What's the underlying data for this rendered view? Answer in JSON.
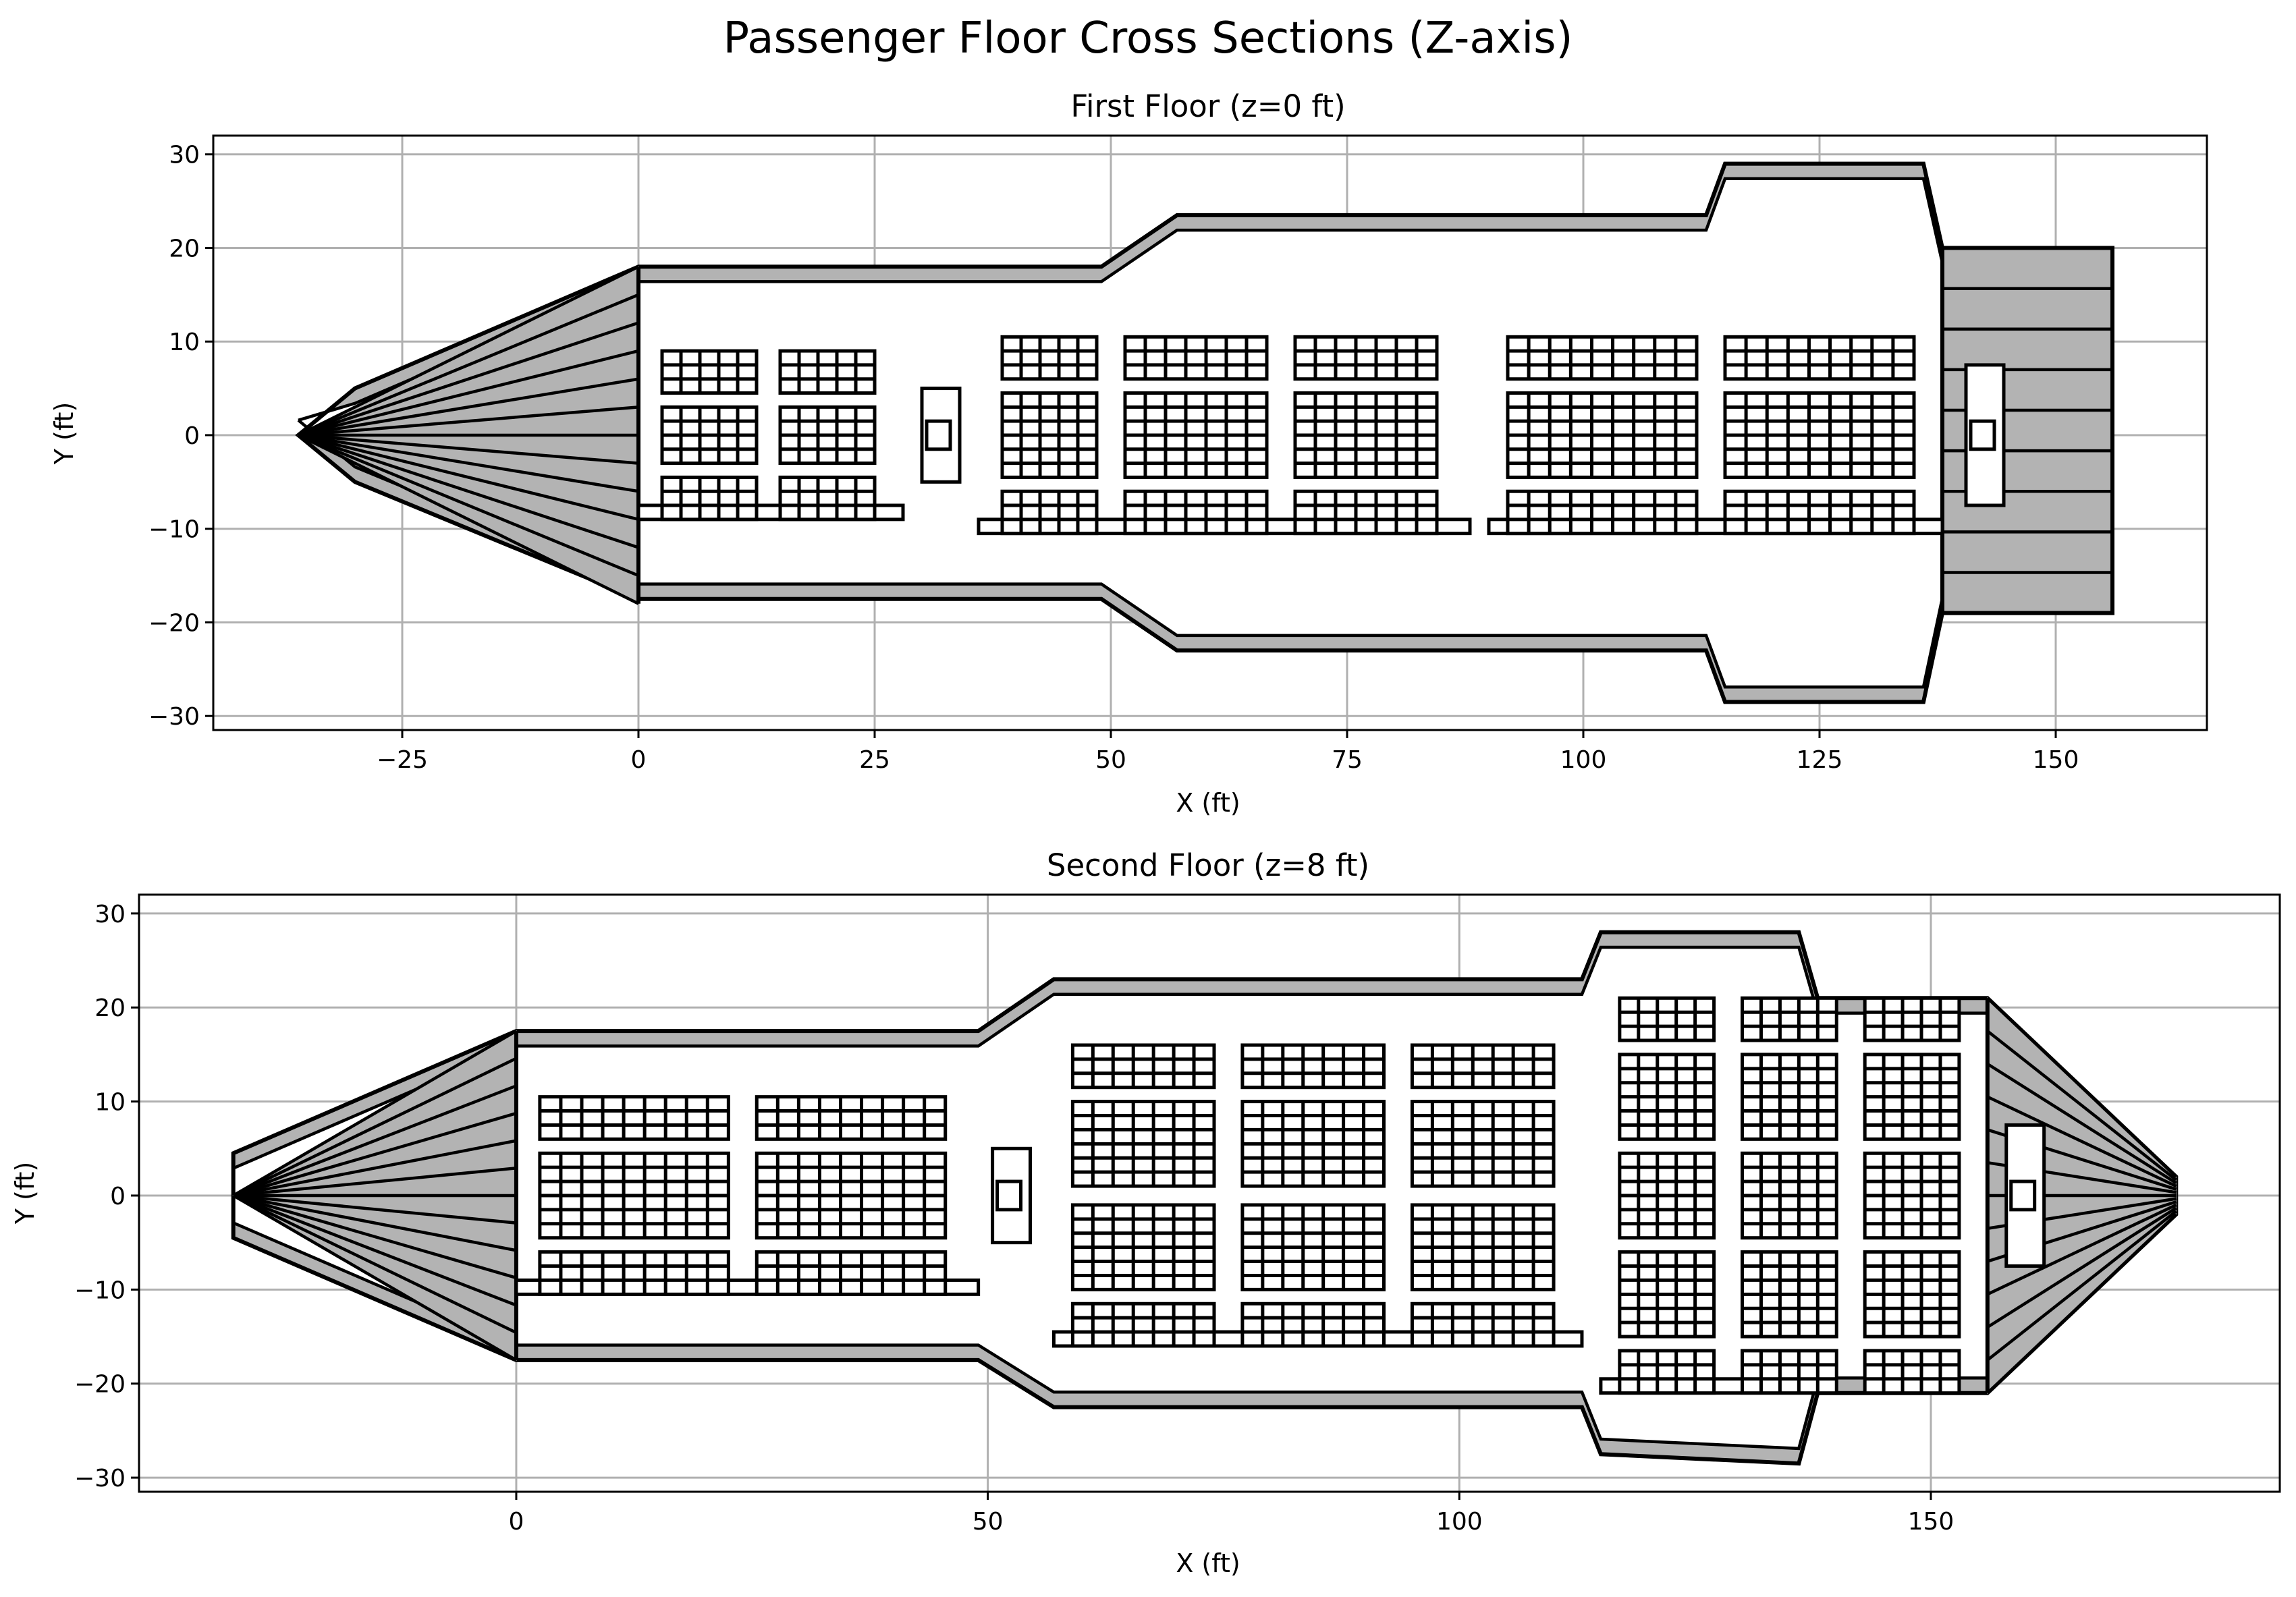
{
  "title": "Passenger Floor Cross Sections (Z-axis)",
  "colors": {
    "hull_fill": "#b3b3b3",
    "lines": "#000000",
    "grid": "#b0b0b0",
    "background": "#ffffff"
  },
  "chart_data": [
    {
      "type": "line",
      "title": "First Floor (z=0 ft)",
      "xlabel": "X (ft)",
      "ylabel": "Y (ft)",
      "xlim": [
        -45,
        166
      ],
      "ylim": [
        -31.5,
        32
      ],
      "xticks": [
        -25,
        0,
        25,
        50,
        75,
        100,
        125,
        150
      ],
      "yticks": [
        -30,
        -20,
        -10,
        0,
        10,
        20,
        30
      ],
      "xtick_labels": [
        "−25",
        "0",
        "25",
        "50",
        "75",
        "100",
        "125",
        "150"
      ],
      "ytick_labels": [
        "−30",
        "−20",
        "−10",
        "0",
        "10",
        "20",
        "30"
      ],
      "grid": true,
      "outline": [
        [
          -36,
          0
        ],
        [
          -30,
          5
        ],
        [
          0,
          18
        ],
        [
          49,
          18
        ],
        [
          57,
          23.5
        ],
        [
          113,
          23.5
        ],
        [
          115,
          29
        ],
        [
          136,
          29
        ],
        [
          138,
          20
        ],
        [
          156,
          20
        ],
        [
          156,
          -19
        ],
        [
          138,
          -19
        ],
        [
          136,
          -28.5
        ],
        [
          115,
          -28.5
        ],
        [
          113,
          -23
        ],
        [
          57,
          -23
        ],
        [
          49,
          -17.5
        ],
        [
          0,
          -17.5
        ],
        [
          -30,
          -5
        ]
      ],
      "nose": {
        "apex": [
          -36,
          0
        ],
        "base_x": 0,
        "half_width": 18,
        "spokes": 12
      },
      "tail_block": {
        "x": [
          138,
          156
        ],
        "y": [
          -19,
          20
        ],
        "bands": 9
      },
      "seat_blocks": [
        {
          "x": [
            2.5,
            12.5
          ],
          "y": [
            4.5,
            9
          ],
          "cols": 5,
          "rows": 3
        },
        {
          "x": [
            15,
            25
          ],
          "y": [
            4.5,
            9
          ],
          "cols": 5,
          "rows": 3
        },
        {
          "x": [
            2.5,
            12.5
          ],
          "y": [
            -3,
            3
          ],
          "cols": 5,
          "rows": 4
        },
        {
          "x": [
            15,
            25
          ],
          "y": [
            -3,
            3
          ],
          "cols": 5,
          "rows": 4
        },
        {
          "x": [
            2.5,
            12.5
          ],
          "y": [
            -9,
            -4.5
          ],
          "cols": 5,
          "rows": 3
        },
        {
          "x": [
            15,
            25
          ],
          "y": [
            -9,
            -4.5
          ],
          "cols": 5,
          "rows": 3
        },
        {
          "x": [
            38.5,
            48.5
          ],
          "y": [
            6,
            10.5
          ],
          "cols": 5,
          "rows": 3
        },
        {
          "x": [
            51.5,
            66.5
          ],
          "y": [
            6,
            10.5
          ],
          "cols": 7,
          "rows": 3
        },
        {
          "x": [
            69.5,
            84.5
          ],
          "y": [
            6,
            10.5
          ],
          "cols": 7,
          "rows": 3
        },
        {
          "x": [
            92,
            112
          ],
          "y": [
            6,
            10.5
          ],
          "cols": 9,
          "rows": 3
        },
        {
          "x": [
            115,
            135
          ],
          "y": [
            6,
            10.5
          ],
          "cols": 9,
          "rows": 3
        },
        {
          "x": [
            38.5,
            48.5
          ],
          "y": [
            -4.5,
            4.5
          ],
          "cols": 5,
          "rows": 6
        },
        {
          "x": [
            51.5,
            66.5
          ],
          "y": [
            -4.5,
            4.5
          ],
          "cols": 7,
          "rows": 6
        },
        {
          "x": [
            69.5,
            84.5
          ],
          "y": [
            -4.5,
            4.5
          ],
          "cols": 7,
          "rows": 6
        },
        {
          "x": [
            92,
            112
          ],
          "y": [
            -4.5,
            4.5
          ],
          "cols": 9,
          "rows": 6
        },
        {
          "x": [
            115,
            135
          ],
          "y": [
            -4.5,
            4.5
          ],
          "cols": 9,
          "rows": 6
        },
        {
          "x": [
            38.5,
            48.5
          ],
          "y": [
            -10.5,
            -6
          ],
          "cols": 5,
          "rows": 3
        },
        {
          "x": [
            51.5,
            66.5
          ],
          "y": [
            -10.5,
            -6
          ],
          "cols": 7,
          "rows": 3
        },
        {
          "x": [
            69.5,
            84.5
          ],
          "y": [
            -10.5,
            -6
          ],
          "cols": 7,
          "rows": 3
        },
        {
          "x": [
            92,
            112
          ],
          "y": [
            -10.5,
            -6
          ],
          "cols": 9,
          "rows": 3
        },
        {
          "x": [
            115,
            135
          ],
          "y": [
            -10.5,
            -6
          ],
          "cols": 9,
          "rows": 3
        }
      ],
      "aisle_rail": [
        [
          0,
          28,
          -9,
          -7.5
        ],
        [
          36,
          88,
          -10.5,
          -9
        ],
        [
          90,
          138,
          -10.5,
          -9
        ]
      ],
      "stair": {
        "x": [
          30,
          34
        ],
        "y": [
          -5,
          5
        ],
        "inner": [
          30.5,
          33,
          -1.5,
          1.5
        ]
      },
      "tail_door": {
        "x": [
          140.5,
          144.5
        ],
        "y": [
          -7.5,
          7.5
        ],
        "inner": [
          141,
          143.5,
          -1.5,
          1.5
        ]
      }
    },
    {
      "type": "line",
      "title": "Second Floor (z=8 ft)",
      "xlabel": "X (ft)",
      "ylabel": "Y (ft)",
      "xlim": [
        -40,
        187
      ],
      "ylim": [
        -31.5,
        32
      ],
      "xticks": [
        0,
        50,
        100,
        150
      ],
      "yticks": [
        -30,
        -20,
        -10,
        0,
        10,
        20,
        30
      ],
      "xtick_labels": [
        "0",
        "50",
        "100",
        "150"
      ],
      "ytick_labels": [
        "−30",
        "−20",
        "−10",
        "0",
        "10",
        "20",
        "30"
      ],
      "grid": true,
      "outline": [
        [
          -30,
          4.5
        ],
        [
          0,
          17.5
        ],
        [
          49,
          17.5
        ],
        [
          57,
          23
        ],
        [
          113,
          23
        ],
        [
          115,
          28
        ],
        [
          136,
          28
        ],
        [
          138,
          21
        ],
        [
          156,
          21
        ],
        [
          176,
          2
        ],
        [
          176,
          -2
        ],
        [
          156,
          -21
        ],
        [
          138,
          -21
        ],
        [
          136,
          -28.5
        ],
        [
          115,
          -27.5
        ],
        [
          113,
          -22.5
        ],
        [
          57,
          -22.5
        ],
        [
          49,
          -17.5
        ],
        [
          0,
          -17.5
        ],
        [
          -30,
          -4.5
        ]
      ],
      "nose": {
        "apex": [
          -30,
          0
        ],
        "base_x": 0,
        "half_width": 17.5,
        "spokes": 12
      },
      "tail_cone": {
        "base_x": 156,
        "apex_x": 176,
        "half_width": 21,
        "spokes": 12
      },
      "seat_blocks": [
        {
          "x": [
            2.5,
            22.5
          ],
          "y": [
            6,
            10.5
          ],
          "cols": 9,
          "rows": 3
        },
        {
          "x": [
            25.5,
            45.5
          ],
          "y": [
            6,
            10.5
          ],
          "cols": 9,
          "rows": 3
        },
        {
          "x": [
            2.5,
            22.5
          ],
          "y": [
            -4.5,
            4.5
          ],
          "cols": 9,
          "rows": 6
        },
        {
          "x": [
            25.5,
            45.5
          ],
          "y": [
            -4.5,
            4.5
          ],
          "cols": 9,
          "rows": 6
        },
        {
          "x": [
            2.5,
            22.5
          ],
          "y": [
            -10.5,
            -6
          ],
          "cols": 9,
          "rows": 3
        },
        {
          "x": [
            25.5,
            45.5
          ],
          "y": [
            -10.5,
            -6
          ],
          "cols": 9,
          "rows": 3
        },
        {
          "x": [
            59,
            74
          ],
          "y": [
            11.5,
            16
          ],
          "cols": 7,
          "rows": 3
        },
        {
          "x": [
            77,
            92
          ],
          "y": [
            11.5,
            16
          ],
          "cols": 7,
          "rows": 3
        },
        {
          "x": [
            95,
            110
          ],
          "y": [
            11.5,
            16
          ],
          "cols": 7,
          "rows": 3
        },
        {
          "x": [
            59,
            74
          ],
          "y": [
            1,
            10
          ],
          "cols": 7,
          "rows": 6
        },
        {
          "x": [
            77,
            92
          ],
          "y": [
            1,
            10
          ],
          "cols": 7,
          "rows": 6
        },
        {
          "x": [
            95,
            110
          ],
          "y": [
            1,
            10
          ],
          "cols": 7,
          "rows": 6
        },
        {
          "x": [
            59,
            74
          ],
          "y": [
            -10,
            -1
          ],
          "cols": 7,
          "rows": 6
        },
        {
          "x": [
            77,
            92
          ],
          "y": [
            -10,
            -1
          ],
          "cols": 7,
          "rows": 6
        },
        {
          "x": [
            95,
            110
          ],
          "y": [
            -10,
            -1
          ],
          "cols": 7,
          "rows": 6
        },
        {
          "x": [
            59,
            74
          ],
          "y": [
            -16,
            -11.5
          ],
          "cols": 7,
          "rows": 3
        },
        {
          "x": [
            77,
            92
          ],
          "y": [
            -16,
            -11.5
          ],
          "cols": 7,
          "rows": 3
        },
        {
          "x": [
            95,
            110
          ],
          "y": [
            -16,
            -11.5
          ],
          "cols": 7,
          "rows": 3
        },
        {
          "x": [
            117,
            127
          ],
          "y": [
            16.5,
            21
          ],
          "cols": 5,
          "rows": 3
        },
        {
          "x": [
            130,
            140
          ],
          "y": [
            16.5,
            21
          ],
          "cols": 5,
          "rows": 3
        },
        {
          "x": [
            143,
            153
          ],
          "y": [
            16.5,
            21
          ],
          "cols": 5,
          "rows": 3
        },
        {
          "x": [
            117,
            127
          ],
          "y": [
            6,
            15
          ],
          "cols": 5,
          "rows": 6
        },
        {
          "x": [
            130,
            140
          ],
          "y": [
            6,
            15
          ],
          "cols": 5,
          "rows": 6
        },
        {
          "x": [
            143,
            153
          ],
          "y": [
            6,
            15
          ],
          "cols": 5,
          "rows": 6
        },
        {
          "x": [
            117,
            127
          ],
          "y": [
            -4.5,
            4.5
          ],
          "cols": 5,
          "rows": 6
        },
        {
          "x": [
            130,
            140
          ],
          "y": [
            -4.5,
            4.5
          ],
          "cols": 5,
          "rows": 6
        },
        {
          "x": [
            143,
            153
          ],
          "y": [
            -4.5,
            4.5
          ],
          "cols": 5,
          "rows": 6
        },
        {
          "x": [
            117,
            127
          ],
          "y": [
            -15,
            -6
          ],
          "cols": 5,
          "rows": 6
        },
        {
          "x": [
            130,
            140
          ],
          "y": [
            -15,
            -6
          ],
          "cols": 5,
          "rows": 6
        },
        {
          "x": [
            143,
            153
          ],
          "y": [
            -15,
            -6
          ],
          "cols": 5,
          "rows": 6
        },
        {
          "x": [
            117,
            127
          ],
          "y": [
            -21,
            -16.5
          ],
          "cols": 5,
          "rows": 3
        },
        {
          "x": [
            130,
            140
          ],
          "y": [
            -21,
            -16.5
          ],
          "cols": 5,
          "rows": 3
        },
        {
          "x": [
            143,
            153
          ],
          "y": [
            -21,
            -16.5
          ],
          "cols": 5,
          "rows": 3
        }
      ],
      "aisle_rail": [
        [
          0,
          49,
          -10.5,
          -9
        ],
        [
          57,
          113,
          -16,
          -14.5
        ],
        [
          115,
          138,
          -21,
          -19.5
        ]
      ],
      "stair": {
        "x": [
          50.5,
          54.5
        ],
        "y": [
          -5,
          5
        ],
        "inner": [
          51,
          53.5,
          -1.5,
          1.5
        ]
      },
      "tail_door": {
        "x": [
          158,
          162
        ],
        "y": [
          -7.5,
          7.5
        ],
        "inner": [
          158.5,
          161,
          -1.5,
          1.5
        ]
      }
    }
  ]
}
